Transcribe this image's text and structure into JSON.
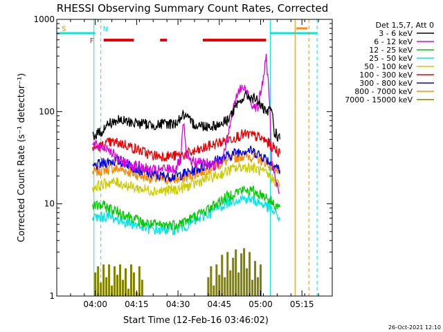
{
  "chart_data": {
    "type": "line",
    "title": "RHESSI Observing Summary Count Rates, Corrected",
    "ylabel": "Corrected Count Rate (s⁻¹ detector⁻¹)",
    "xlabel": "Start Time (12-Feb-16 03:46:02)",
    "footer": "26-Oct-2021 12:10",
    "y_scale": "log",
    "ylim": [
      1,
      1000
    ],
    "y_ticks": [
      {
        "value": 1,
        "label": "1"
      },
      {
        "value": 10,
        "label": "10"
      },
      {
        "value": 100,
        "label": "100"
      },
      {
        "value": 1000,
        "label": "1000"
      }
    ],
    "x_unit": "minutes since 03:46:02",
    "xlim": [
      0,
      100
    ],
    "x_ticks": [
      {
        "value": 14,
        "label": "04:00"
      },
      {
        "value": 29,
        "label": "04:15"
      },
      {
        "value": 44,
        "label": "04:30"
      },
      {
        "value": 59,
        "label": "04:45"
      },
      {
        "value": 74,
        "label": "05:00"
      },
      {
        "value": 89,
        "label": "05:15"
      }
    ],
    "legend_header": "Det 1,5,7, Att 0",
    "legend_position": "right",
    "series": [
      {
        "name": "3 - 6 keV",
        "color": "#000000",
        "points": [
          [
            13,
            55
          ],
          [
            16,
            60
          ],
          [
            19,
            75
          ],
          [
            22,
            80
          ],
          [
            25,
            78
          ],
          [
            28,
            76
          ],
          [
            31,
            74
          ],
          [
            34,
            72
          ],
          [
            37,
            72
          ],
          [
            40,
            74
          ],
          [
            43,
            74
          ],
          [
            44,
            80
          ],
          [
            46,
            92
          ],
          [
            48,
            80
          ],
          [
            50,
            73
          ],
          [
            53,
            70
          ],
          [
            56,
            70
          ],
          [
            59,
            72
          ],
          [
            62,
            82
          ],
          [
            65,
            110
          ],
          [
            67,
            135
          ],
          [
            69,
            150
          ],
          [
            71,
            140
          ],
          [
            73,
            132
          ],
          [
            75,
            105
          ],
          [
            76,
            95
          ],
          [
            77,
            100
          ],
          [
            78,
            110
          ],
          [
            79,
            60
          ],
          [
            80,
            55
          ],
          [
            81,
            50
          ]
        ]
      },
      {
        "name": "6 - 12 keV",
        "color": "#dd00dd",
        "points": [
          [
            13,
            43
          ],
          [
            16,
            42
          ],
          [
            19,
            40
          ],
          [
            22,
            30
          ],
          [
            25,
            28
          ],
          [
            28,
            26
          ],
          [
            31,
            25
          ],
          [
            34,
            23
          ],
          [
            37,
            23
          ],
          [
            40,
            24
          ],
          [
            43,
            24
          ],
          [
            45,
            30
          ],
          [
            46,
            78
          ],
          [
            47,
            32
          ],
          [
            50,
            28
          ],
          [
            54,
            28
          ],
          [
            57,
            26
          ],
          [
            60,
            30
          ],
          [
            63,
            75
          ],
          [
            65,
            140
          ],
          [
            67,
            185
          ],
          [
            69,
            165
          ],
          [
            71,
            120
          ],
          [
            73,
            110
          ],
          [
            75,
            230
          ],
          [
            76,
            380
          ],
          [
            77,
            180
          ],
          [
            78,
            30
          ],
          [
            79,
            20
          ],
          [
            80,
            15
          ],
          [
            81,
            13
          ]
        ]
      },
      {
        "name": "12 - 25 keV",
        "color": "#00cc00",
        "points": [
          [
            13,
            9.5
          ],
          [
            16,
            9.6
          ],
          [
            19,
            9.0
          ],
          [
            22,
            8.2
          ],
          [
            25,
            7.6
          ],
          [
            28,
            7.0
          ],
          [
            31,
            6.2
          ],
          [
            34,
            6.0
          ],
          [
            37,
            5.8
          ],
          [
            40,
            5.9
          ],
          [
            43,
            6.0
          ],
          [
            46,
            6.4
          ],
          [
            49,
            7.0
          ],
          [
            52,
            7.8
          ],
          [
            55,
            8.8
          ],
          [
            58,
            10
          ],
          [
            61,
            11.5
          ],
          [
            64,
            13
          ],
          [
            67,
            14
          ],
          [
            70,
            14
          ],
          [
            73,
            13
          ],
          [
            76,
            12
          ],
          [
            78,
            10.5
          ],
          [
            80,
            9.5
          ],
          [
            81,
            9.2
          ]
        ]
      },
      {
        "name": "25 - 50 keV",
        "color": "#00e5e5",
        "points": [
          [
            13,
            7.0
          ],
          [
            16,
            7.2
          ],
          [
            19,
            7.3
          ],
          [
            22,
            6.8
          ],
          [
            25,
            6.4
          ],
          [
            28,
            6.0
          ],
          [
            31,
            5.6
          ],
          [
            34,
            5.3
          ],
          [
            37,
            5.2
          ],
          [
            40,
            5.3
          ],
          [
            43,
            5.3
          ],
          [
            46,
            5.6
          ],
          [
            49,
            6.2
          ],
          [
            52,
            7.0
          ],
          [
            55,
            7.8
          ],
          [
            58,
            8.8
          ],
          [
            61,
            10
          ],
          [
            64,
            11
          ],
          [
            67,
            11.5
          ],
          [
            70,
            11.2
          ],
          [
            73,
            10.5
          ],
          [
            76,
            9.5
          ],
          [
            78,
            8.5
          ],
          [
            80,
            7.5
          ],
          [
            81,
            6.8
          ]
        ]
      },
      {
        "name": "50 - 100 keV",
        "color": "#cccc00",
        "points": [
          [
            13,
            15
          ],
          [
            16,
            16
          ],
          [
            19,
            17
          ],
          [
            22,
            17
          ],
          [
            25,
            16
          ],
          [
            28,
            15
          ],
          [
            31,
            14.5
          ],
          [
            34,
            14
          ],
          [
            37,
            13.8
          ],
          [
            40,
            14
          ],
          [
            43,
            14.2
          ],
          [
            46,
            15
          ],
          [
            49,
            16
          ],
          [
            52,
            17.5
          ],
          [
            55,
            19
          ],
          [
            58,
            20
          ],
          [
            61,
            22
          ],
          [
            64,
            24
          ],
          [
            67,
            25
          ],
          [
            70,
            25
          ],
          [
            73,
            23.5
          ],
          [
            76,
            21
          ],
          [
            78,
            19
          ],
          [
            80,
            17
          ],
          [
            81,
            16
          ]
        ]
      },
      {
        "name": "100 - 300 keV",
        "color": "#ee0000",
        "points": [
          [
            13,
            40
          ],
          [
            16,
            42
          ],
          [
            19,
            46
          ],
          [
            22,
            46
          ],
          [
            25,
            44
          ],
          [
            28,
            40
          ],
          [
            31,
            37
          ],
          [
            34,
            34
          ],
          [
            37,
            33
          ],
          [
            40,
            33
          ],
          [
            43,
            33
          ],
          [
            46,
            34
          ],
          [
            49,
            36
          ],
          [
            52,
            38
          ],
          [
            55,
            42
          ],
          [
            58,
            45
          ],
          [
            61,
            48
          ],
          [
            64,
            52
          ],
          [
            67,
            56
          ],
          [
            70,
            56
          ],
          [
            73,
            53
          ],
          [
            76,
            48
          ],
          [
            78,
            42
          ],
          [
            80,
            38
          ],
          [
            81,
            35
          ]
        ]
      },
      {
        "name": "300 - 800 keV",
        "color": "#0000ee",
        "points": [
          [
            13,
            25
          ],
          [
            16,
            27
          ],
          [
            19,
            29
          ],
          [
            22,
            29
          ],
          [
            25,
            28
          ],
          [
            28,
            25
          ],
          [
            31,
            22.5
          ],
          [
            34,
            21
          ],
          [
            37,
            20
          ],
          [
            40,
            20
          ],
          [
            43,
            20
          ],
          [
            46,
            21
          ],
          [
            49,
            22.5
          ],
          [
            52,
            24.5
          ],
          [
            55,
            27
          ],
          [
            58,
            29.5
          ],
          [
            61,
            32
          ],
          [
            64,
            35
          ],
          [
            67,
            38
          ],
          [
            70,
            38
          ],
          [
            73,
            35
          ],
          [
            76,
            31
          ],
          [
            78,
            27
          ],
          [
            80,
            25
          ],
          [
            81,
            23
          ]
        ]
      },
      {
        "name": "800 - 7000 keV",
        "color": "#ff8800",
        "points": [
          [
            13,
            22
          ],
          [
            16,
            23
          ],
          [
            19,
            24
          ],
          [
            22,
            24
          ],
          [
            25,
            23
          ],
          [
            28,
            21
          ],
          [
            31,
            20
          ],
          [
            34,
            19
          ],
          [
            37,
            18.5
          ],
          [
            40,
            18.5
          ],
          [
            43,
            18.5
          ],
          [
            46,
            19
          ],
          [
            49,
            20.5
          ],
          [
            52,
            22
          ],
          [
            55,
            24
          ],
          [
            58,
            26
          ],
          [
            61,
            28.5
          ],
          [
            64,
            31
          ],
          [
            67,
            33
          ],
          [
            70,
            33
          ],
          [
            73,
            31
          ],
          [
            76,
            28
          ],
          [
            78,
            25
          ],
          [
            80,
            23
          ],
          [
            81,
            21
          ]
        ]
      },
      {
        "name": "7000 - 15000 keV",
        "color": "#808000",
        "points": [
          [
            14,
            1.8
          ],
          [
            15,
            2.1
          ],
          [
            16,
            1.4
          ],
          [
            17,
            2.2
          ],
          [
            18,
            1.6
          ],
          [
            19,
            2.2
          ],
          [
            20,
            1.3
          ],
          [
            21,
            2.1
          ],
          [
            22,
            1.7
          ],
          [
            23,
            2.2
          ],
          [
            24,
            1.5
          ],
          [
            25,
            2.0
          ],
          [
            26,
            1.2
          ],
          [
            27,
            2.2
          ],
          [
            28,
            1.8
          ],
          [
            29,
            1.1
          ],
          [
            30,
            2.1
          ],
          [
            31,
            1.5
          ],
          [
            55,
            1.6
          ],
          [
            56,
            2.1
          ],
          [
            57,
            1.3
          ],
          [
            58,
            2.2
          ],
          [
            59,
            1.7
          ],
          [
            60,
            2.8
          ],
          [
            61,
            1.6
          ],
          [
            62,
            3.0
          ],
          [
            63,
            1.9
          ],
          [
            64,
            2.6
          ],
          [
            65,
            3.2
          ],
          [
            66,
            1.8
          ],
          [
            67,
            2.9
          ],
          [
            68,
            3.3
          ],
          [
            69,
            2.0
          ],
          [
            70,
            3.0
          ],
          [
            71,
            1.5
          ],
          [
            72,
            2.4
          ],
          [
            73,
            1.6
          ],
          [
            74,
            2.2
          ]
        ]
      }
    ],
    "mode_markers": [
      {
        "label": "S",
        "x": 1,
        "color": "#ff8800"
      },
      {
        "label": "F",
        "x": 14,
        "color": "#ff0000"
      },
      {
        "label": "N",
        "x": 16,
        "color": "#00e5e5"
      }
    ],
    "night_bars": [
      [
        0,
        14
      ],
      [
        77.5,
        94.5
      ]
    ],
    "flare_segments": [
      [
        17,
        28
      ],
      [
        37.5,
        40
      ],
      [
        53,
        76
      ]
    ],
    "saa_segment": [
      87,
      91
    ],
    "vertical_lines": [
      {
        "x": 13.5,
        "color": "#00e5e5",
        "style": "solid"
      },
      {
        "x": 16.0,
        "color": "#00e5e5",
        "style": "dashed"
      },
      {
        "x": 77.5,
        "color": "#00e5e5",
        "style": "solid"
      },
      {
        "x": 86.5,
        "color": "#ff8800",
        "style": "solid"
      },
      {
        "x": 91.5,
        "color": "#ff8800",
        "style": "dashed"
      },
      {
        "x": 94.5,
        "color": "#00e5e5",
        "style": "dashed"
      }
    ]
  }
}
